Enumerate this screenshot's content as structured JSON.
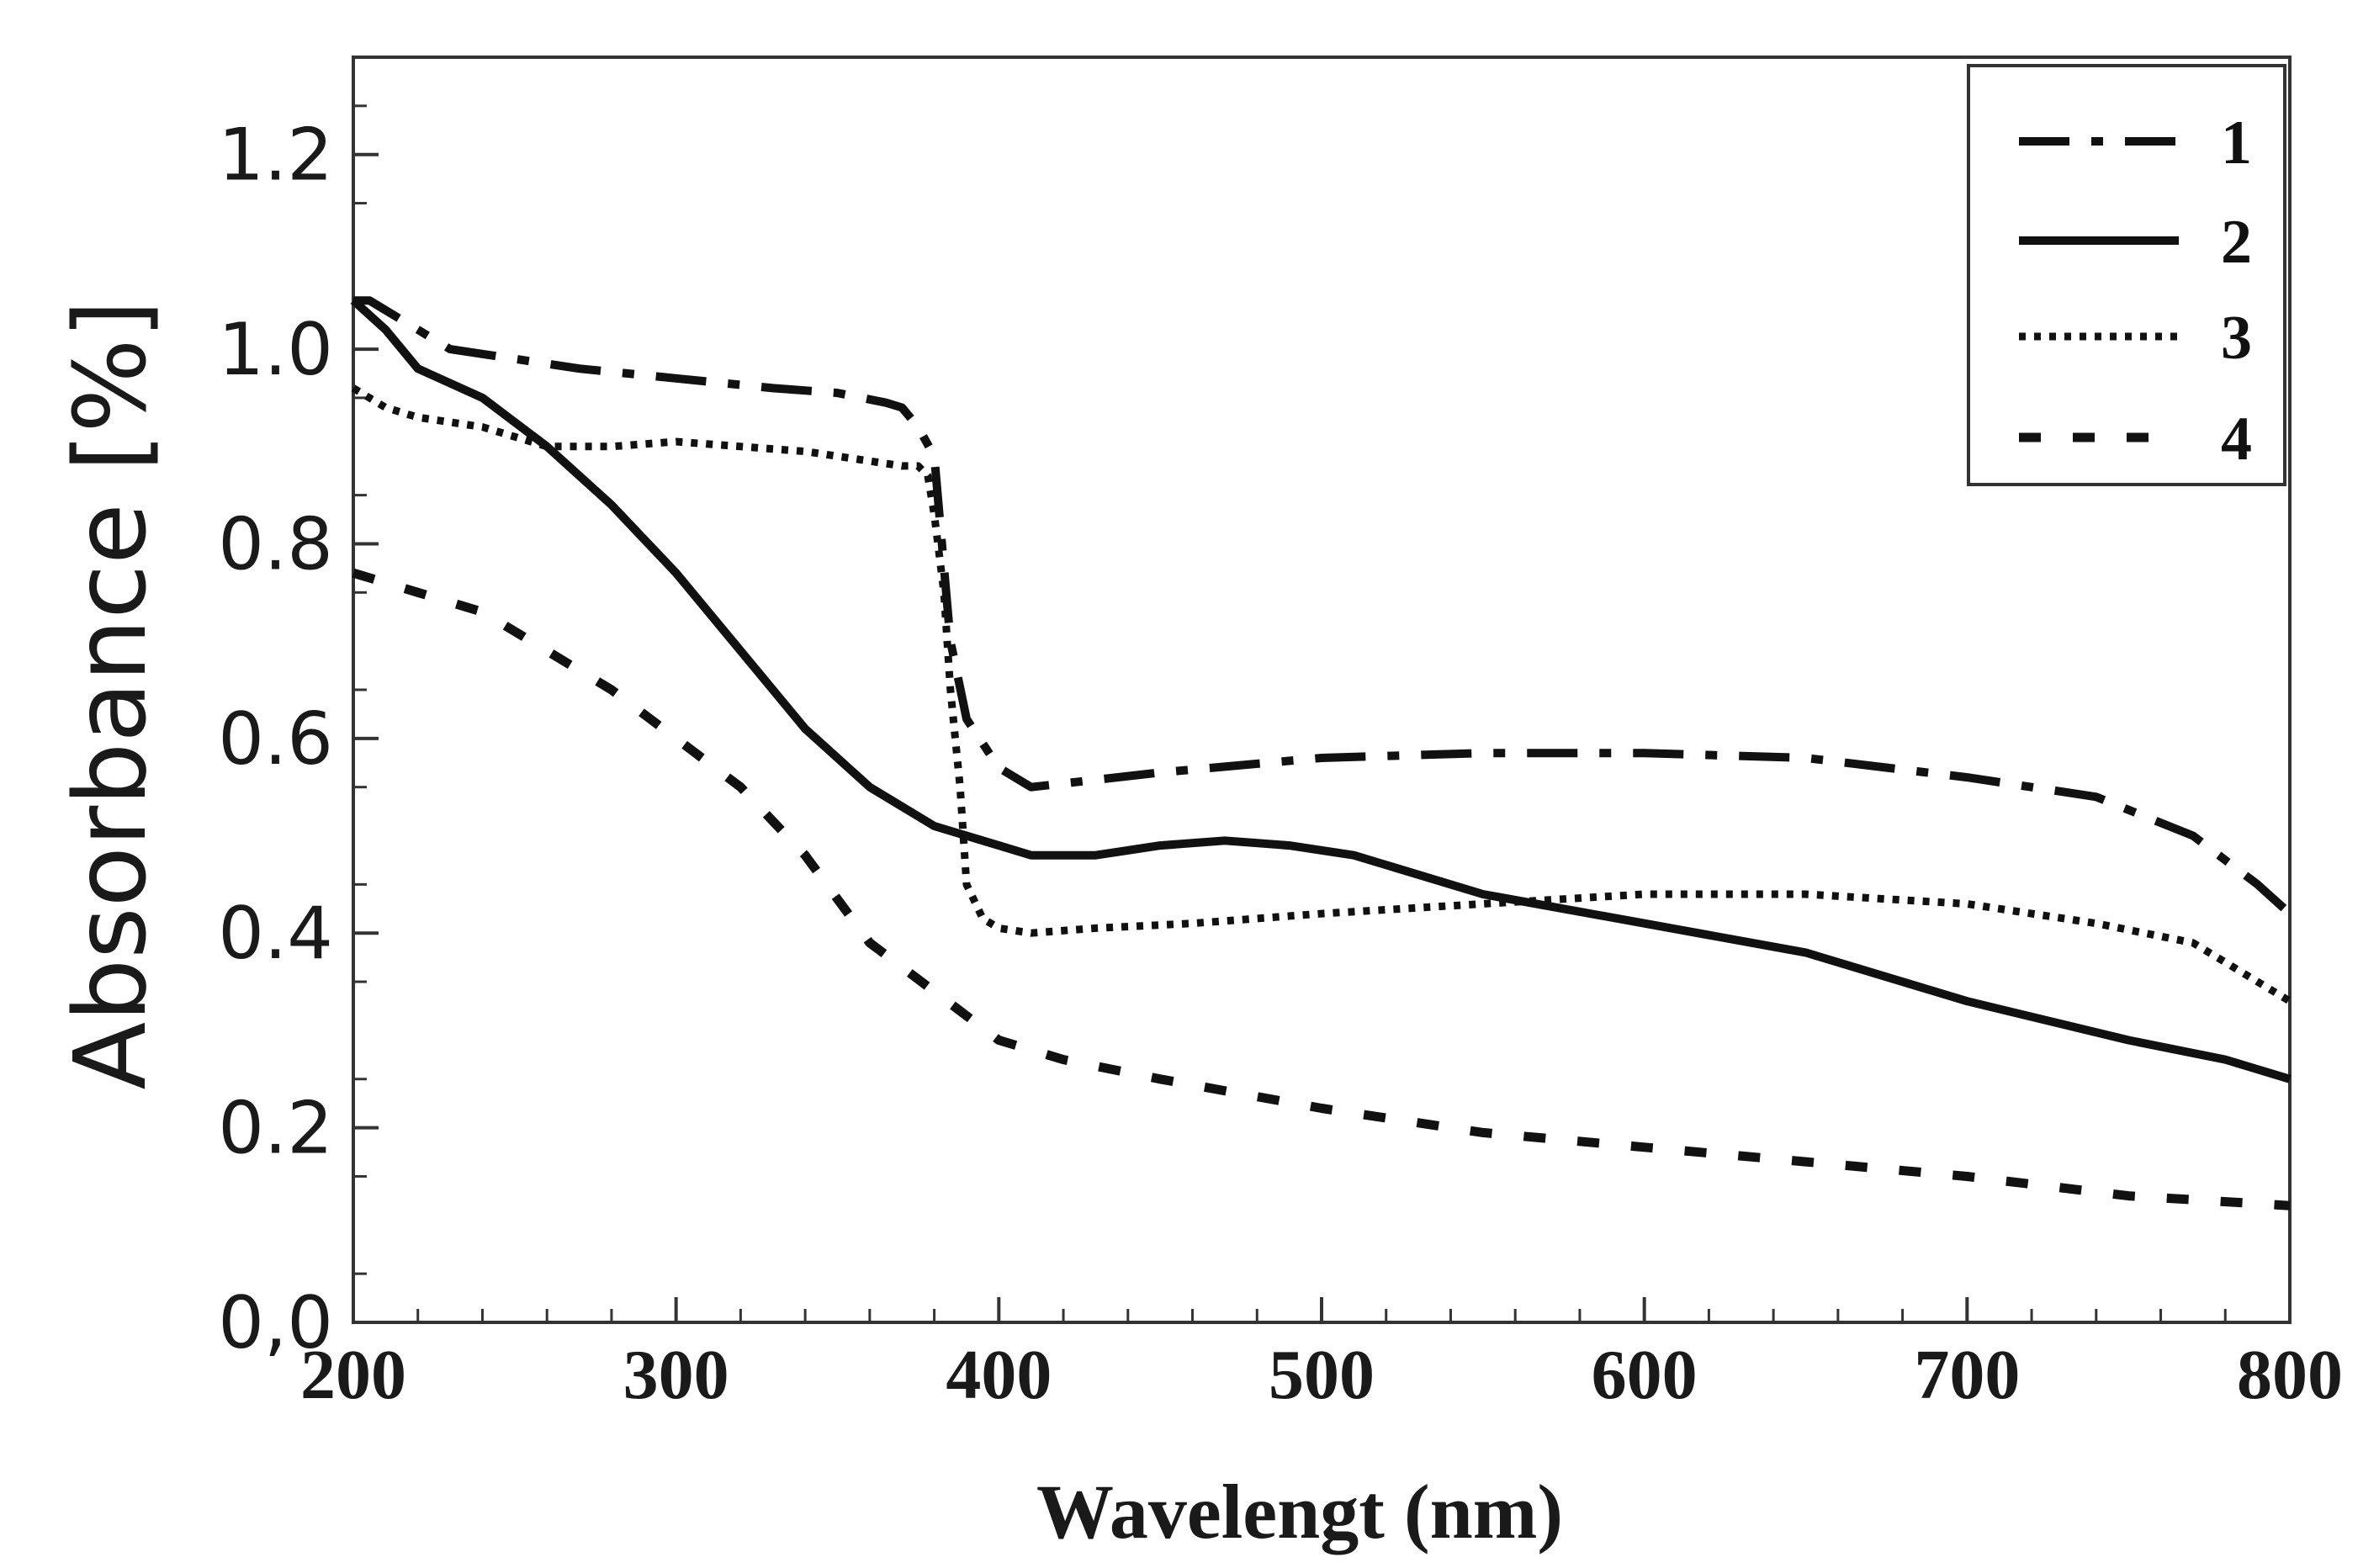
{
  "chart_data": {
    "type": "line",
    "title": "",
    "xlabel": "Wavelengt (nm)",
    "ylabel": "Absorbance  [%]",
    "xlim": [
      200,
      800
    ],
    "ylim": [
      0.0,
      1.3
    ],
    "xticks": [
      200,
      300,
      400,
      500,
      600,
      700,
      800
    ],
    "xtick_labels": [
      "200",
      "300",
      "400",
      "500",
      "600",
      "700",
      "800"
    ],
    "yticks": [
      0.0,
      0.2,
      0.4,
      0.6,
      0.8,
      1.0,
      1.2
    ],
    "ytick_labels": [
      "0,0",
      "0.2",
      "0.4",
      "0.6",
      "0.8",
      "1.0",
      "1.2"
    ],
    "grid": false,
    "legend_position": "top-right",
    "series": [
      {
        "name": "1",
        "style": "dash-dot",
        "color": "#111111",
        "x": [
          200,
          205,
          210,
          220,
          230,
          250,
          270,
          300,
          330,
          350,
          365,
          370,
          375,
          380,
          385,
          390,
          400,
          410,
          450,
          500,
          550,
          600,
          650,
          700,
          740,
          770,
          790,
          800
        ],
        "y": [
          1.05,
          1.05,
          1.04,
          1.02,
          1.0,
          0.99,
          0.98,
          0.97,
          0.96,
          0.955,
          0.945,
          0.94,
          0.92,
          0.89,
          0.7,
          0.62,
          0.57,
          0.55,
          0.565,
          0.58,
          0.585,
          0.585,
          0.58,
          0.56,
          0.54,
          0.5,
          0.45,
          0.42
        ]
      },
      {
        "name": "2",
        "style": "solid",
        "color": "#111111",
        "x": [
          200,
          210,
          220,
          240,
          260,
          280,
          300,
          320,
          340,
          360,
          380,
          400,
          410,
          430,
          450,
          470,
          490,
          510,
          550,
          600,
          650,
          700,
          750,
          780,
          800
        ],
        "y": [
          1.05,
          1.02,
          0.98,
          0.95,
          0.9,
          0.84,
          0.77,
          0.69,
          0.61,
          0.55,
          0.51,
          0.49,
          0.48,
          0.48,
          0.49,
          0.495,
          0.49,
          0.48,
          0.44,
          0.41,
          0.38,
          0.33,
          0.29,
          0.27,
          0.25
        ]
      },
      {
        "name": "3",
        "style": "dotted",
        "color": "#111111",
        "x": [
          200,
          210,
          220,
          240,
          260,
          280,
          300,
          320,
          340,
          360,
          370,
          375,
          378,
          380,
          383,
          385,
          388,
          390,
          395,
          400,
          410,
          430,
          460,
          500,
          550,
          600,
          650,
          700,
          740,
          770,
          800
        ],
        "y": [
          0.96,
          0.94,
          0.93,
          0.92,
          0.9,
          0.9,
          0.905,
          0.9,
          0.895,
          0.885,
          0.88,
          0.88,
          0.87,
          0.83,
          0.75,
          0.65,
          0.55,
          0.45,
          0.415,
          0.405,
          0.4,
          0.405,
          0.41,
          0.42,
          0.43,
          0.44,
          0.44,
          0.43,
          0.41,
          0.39,
          0.33
        ]
      },
      {
        "name": "4",
        "style": "dashed",
        "color": "#111111",
        "x": [
          200,
          210,
          220,
          240,
          260,
          280,
          300,
          320,
          340,
          360,
          380,
          400,
          420,
          450,
          500,
          550,
          600,
          650,
          700,
          750,
          800
        ],
        "y": [
          0.77,
          0.76,
          0.75,
          0.73,
          0.69,
          0.65,
          0.6,
          0.55,
          0.48,
          0.39,
          0.34,
          0.29,
          0.27,
          0.25,
          0.22,
          0.195,
          0.18,
          0.165,
          0.15,
          0.13,
          0.12
        ]
      }
    ]
  }
}
